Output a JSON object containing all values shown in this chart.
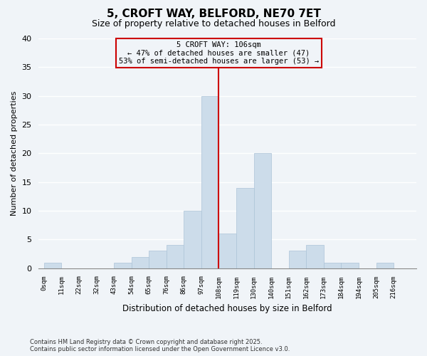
{
  "title": "5, CROFT WAY, BELFORD, NE70 7ET",
  "subtitle": "Size of property relative to detached houses in Belford",
  "xlabel": "Distribution of detached houses by size in Belford",
  "ylabel": "Number of detached properties",
  "bar_color": "#ccdcea",
  "bar_edgecolor": "#adc4d8",
  "bin_labels": [
    "0sqm",
    "11sqm",
    "22sqm",
    "32sqm",
    "43sqm",
    "54sqm",
    "65sqm",
    "76sqm",
    "86sqm",
    "97sqm",
    "108sqm",
    "119sqm",
    "130sqm",
    "140sqm",
    "151sqm",
    "162sqm",
    "173sqm",
    "184sqm",
    "194sqm",
    "205sqm",
    "216sqm"
  ],
  "bar_values": [
    1,
    0,
    0,
    0,
    1,
    2,
    3,
    4,
    10,
    30,
    6,
    14,
    20,
    0,
    3,
    4,
    1,
    1,
    0,
    1,
    0
  ],
  "ylim": [
    0,
    40
  ],
  "yticks": [
    0,
    5,
    10,
    15,
    20,
    25,
    30,
    35,
    40
  ],
  "annotation_title": "5 CROFT WAY: 106sqm",
  "annotation_line1": "← 47% of detached houses are smaller (47)",
  "annotation_line2": "53% of semi-detached houses are larger (53) →",
  "bin_edges": [
    0,
    11,
    22,
    32,
    43,
    54,
    65,
    76,
    86,
    97,
    108,
    119,
    130,
    140,
    151,
    162,
    173,
    184,
    194,
    205,
    216,
    227
  ],
  "footnote1": "Contains HM Land Registry data © Crown copyright and database right 2025.",
  "footnote2": "Contains public sector information licensed under the Open Government Licence v3.0.",
  "background_color": "#f0f4f8",
  "grid_color": "#ffffff",
  "annotation_box_edgecolor": "#cc0000",
  "property_line_color": "#cc0000",
  "property_line_bin": 9,
  "title_fontsize": 11,
  "subtitle_fontsize": 9
}
